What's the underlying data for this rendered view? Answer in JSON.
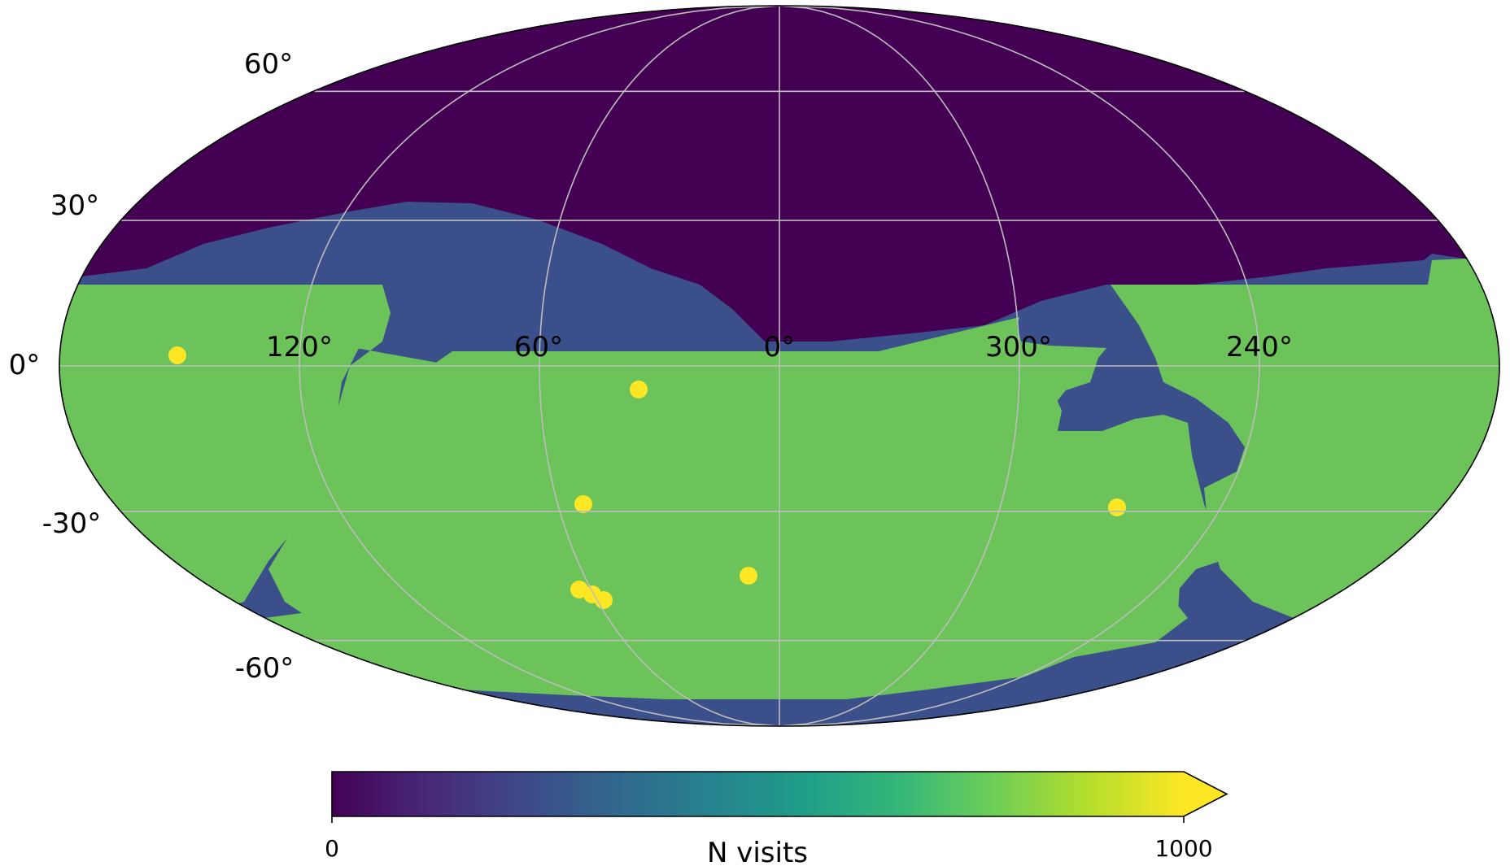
{
  "map": {
    "projection": "mollweide",
    "lat_labels": [
      "60°",
      "30°",
      "0°",
      "-30°",
      "-60°"
    ],
    "lon_labels": [
      "120°",
      "60°",
      "0°",
      "300°",
      "240°"
    ],
    "grid": true,
    "colors": {
      "background_low": "#440154",
      "border_band": "#3b4f8a",
      "survey_field": "#6cc35a",
      "survey_field_dark": "#45ac6b",
      "deep_drilling_fields": "#fde725",
      "grid": "#bdbdbd",
      "outline": "#000000"
    },
    "regions": [
      {
        "name": "northern-unobserved",
        "level": 0
      },
      {
        "name": "low-coverage-band",
        "level": 200
      },
      {
        "name": "main-survey-footprint",
        "level": 720
      },
      {
        "name": "deep-drilling-fields",
        "level": 1000
      }
    ]
  },
  "colorbar": {
    "label": "N visits",
    "min_label": "0",
    "max_label": "1000",
    "vmin": 0,
    "vmax": 1000,
    "extend": "max",
    "colormap": "viridis",
    "stops": [
      "#440154",
      "#482878",
      "#3e4989",
      "#31688e",
      "#26828e",
      "#1f9e89",
      "#35b779",
      "#6ece58",
      "#b5de2b",
      "#fde725"
    ]
  }
}
